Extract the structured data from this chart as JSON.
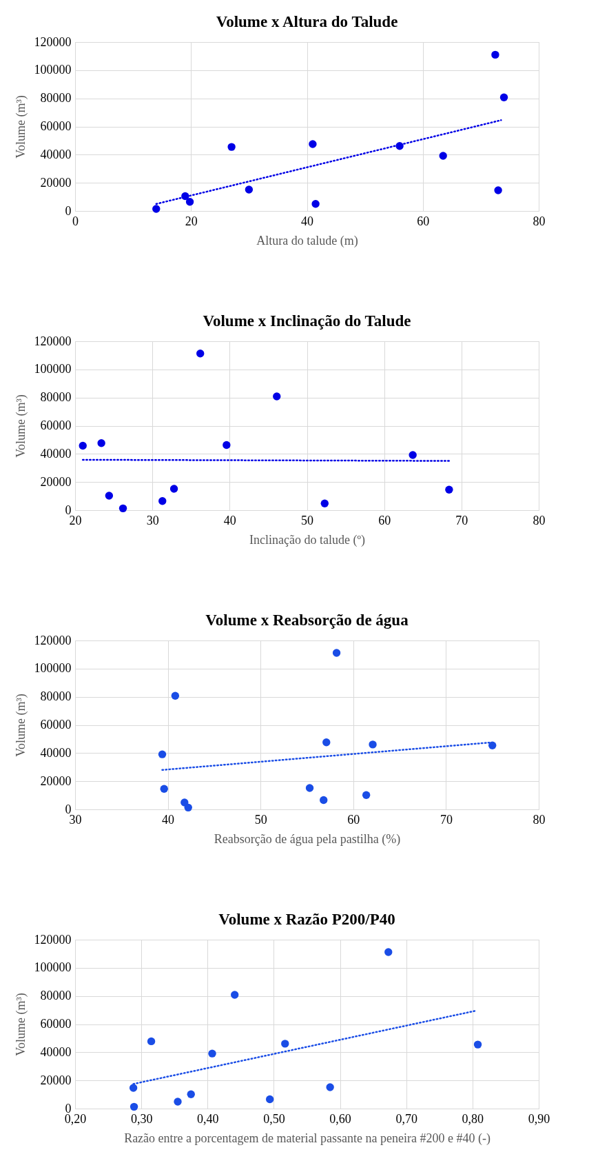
{
  "chart_data": [
    {
      "type": "scatter",
      "title": "Volume x Altura do Talude",
      "xlabel": "Altura do talude (m)",
      "ylabel": "Volume (m³)",
      "xlim": [
        0,
        80
      ],
      "xticks": [
        0,
        20,
        40,
        60,
        80
      ],
      "ylim": [
        0,
        120000
      ],
      "yticks": [
        0,
        20000,
        40000,
        60000,
        80000,
        100000,
        120000
      ],
      "grid": true,
      "series": [
        {
          "type": "scatter",
          "marker": "circle",
          "color": "#0000e6",
          "x": [
            14,
            19,
            19.8,
            27,
            30,
            41,
            41.5,
            56,
            63.5,
            72.5,
            73,
            74
          ],
          "values": [
            1500,
            10500,
            6500,
            45500,
            15200,
            47500,
            5000,
            46200,
            39200,
            111000,
            14700,
            80700
          ]
        },
        {
          "type": "line",
          "line_style": "dotted",
          "color": "#0000e6",
          "x": [
            14,
            73.5
          ],
          "values": [
            5000,
            64500
          ]
        }
      ]
    },
    {
      "type": "scatter",
      "title": "Volume x Inclinação do Talude",
      "xlabel": "Inclinação do talude (º)",
      "ylabel": "Volume (m³)",
      "xlim": [
        20,
        80
      ],
      "xticks": [
        20,
        30,
        40,
        50,
        60,
        70,
        80
      ],
      "ylim": [
        0,
        120000
      ],
      "yticks": [
        0,
        20000,
        40000,
        60000,
        80000,
        100000,
        120000
      ],
      "grid": true,
      "series": [
        {
          "type": "scatter",
          "marker": "circle",
          "color": "#0000e6",
          "x": [
            21,
            23.4,
            24.4,
            26.2,
            31.3,
            32.8,
            36.2,
            39.6,
            46.1,
            52.3,
            63.7,
            68.4
          ],
          "values": [
            45800,
            47600,
            10300,
            1300,
            6500,
            15200,
            111300,
            46300,
            80800,
            4800,
            39200,
            14600
          ]
        },
        {
          "type": "line",
          "line_style": "dotted",
          "color": "#0000e6",
          "x": [
            21,
            68.5
          ],
          "values": [
            35800,
            35000
          ]
        }
      ]
    },
    {
      "type": "scatter",
      "title": "Volume x Reabsorção de água",
      "xlabel": "Reabsorção de água pela pastilha (%)",
      "ylabel": "Volume (m³)",
      "xlim": [
        30,
        80
      ],
      "xticks": [
        30,
        40,
        50,
        60,
        70,
        80
      ],
      "ylim": [
        0,
        120000
      ],
      "yticks": [
        0,
        20000,
        40000,
        60000,
        80000,
        100000,
        120000
      ],
      "grid": true,
      "series": [
        {
          "type": "scatter",
          "marker": "circle",
          "color": "#1a4de6",
          "x": [
            39.4,
            39.6,
            40.8,
            41.8,
            42.2,
            55.3,
            56.8,
            57.1,
            58.2,
            61.4,
            62.1,
            75
          ],
          "values": [
            39100,
            14600,
            80700,
            4900,
            1300,
            15200,
            6600,
            47600,
            111200,
            10200,
            46100,
            45400
          ]
        },
        {
          "type": "line",
          "line_style": "dotted",
          "color": "#1a4de6",
          "x": [
            39.4,
            74.8
          ],
          "values": [
            28000,
            47500
          ]
        }
      ]
    },
    {
      "type": "scatter",
      "title": "Volume x Razão P200/P40",
      "xlabel": "Razão entre a porcentagem de material passante na peneira #200 e #40 (-)",
      "ylabel": "Volume (m³)",
      "xlim": [
        0.2,
        0.9
      ],
      "xticks": [
        {
          "value": 0.2,
          "label": "0,20"
        },
        {
          "value": 0.3,
          "label": "0,30"
        },
        {
          "value": 0.4,
          "label": "0,40"
        },
        {
          "value": 0.5,
          "label": "0,50"
        },
        {
          "value": 0.6,
          "label": "0,60"
        },
        {
          "value": 0.7,
          "label": "0,70"
        },
        {
          "value": 0.8,
          "label": "0,80"
        },
        {
          "value": 0.9,
          "label": "0,90"
        }
      ],
      "ylim": [
        0,
        120000
      ],
      "yticks": [
        0,
        20000,
        40000,
        60000,
        80000,
        100000,
        120000
      ],
      "grid": true,
      "series": [
        {
          "type": "scatter",
          "marker": "circle",
          "color": "#1a4de6",
          "x": [
            0.288,
            0.289,
            0.315,
            0.355,
            0.375,
            0.407,
            0.441,
            0.494,
            0.517,
            0.585,
            0.673,
            0.808
          ],
          "values": [
            14700,
            1300,
            47800,
            4900,
            10200,
            39100,
            80800,
            6600,
            46100,
            15200,
            111200,
            45500
          ]
        },
        {
          "type": "line",
          "line_style": "dotted",
          "color": "#1a4de6",
          "x": [
            0.288,
            0.805
          ],
          "values": [
            17500,
            69500
          ]
        }
      ]
    }
  ]
}
